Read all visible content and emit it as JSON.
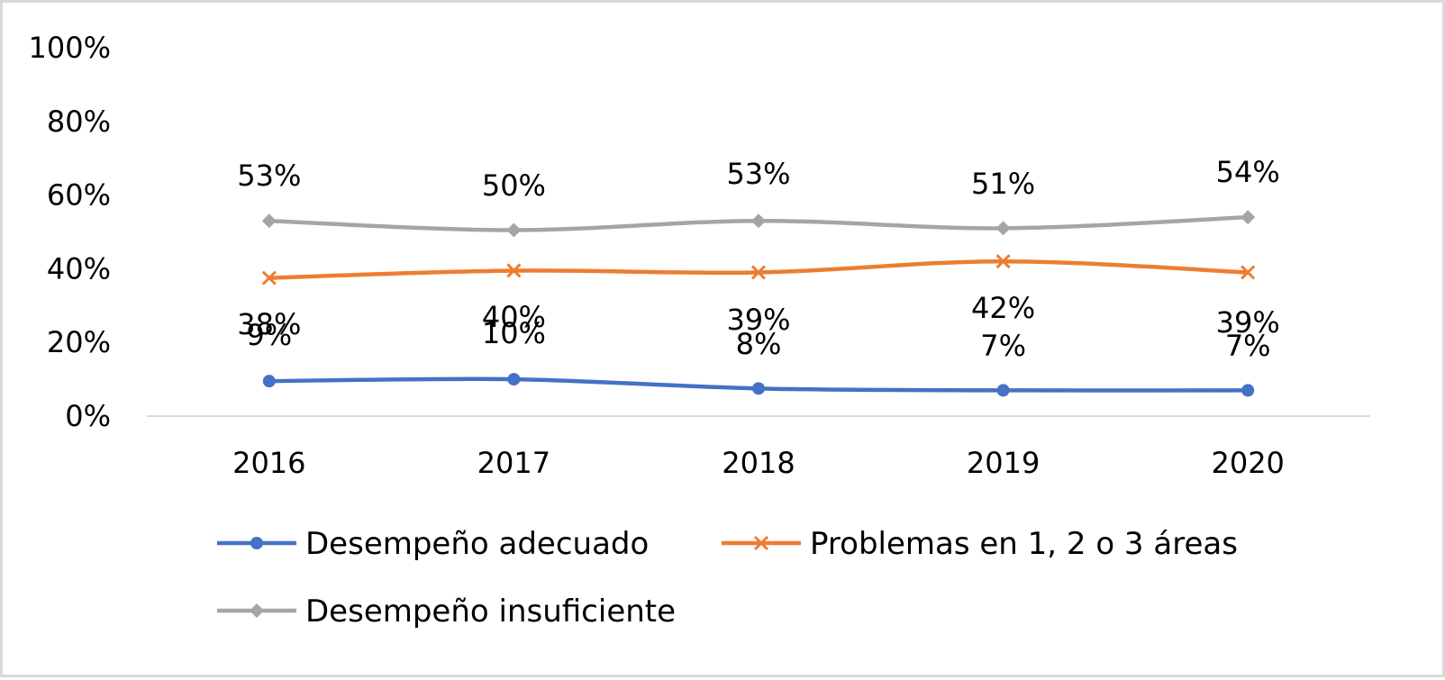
{
  "chart_data": {
    "type": "line",
    "categories": [
      "2016",
      "2017",
      "2018",
      "2019",
      "2020"
    ],
    "ylim": [
      0,
      100
    ],
    "y_ticks": [
      "0%",
      "20%",
      "40%",
      "60%",
      "80%",
      "100%"
    ],
    "y_tick_values": [
      0,
      20,
      40,
      60,
      80,
      100
    ],
    "grid": false,
    "legend_position": "bottom",
    "smooth": true,
    "series": [
      {
        "name": "Desempeño adecuado",
        "values": [
          9.5,
          10,
          7.5,
          7,
          7
        ],
        "labels": [
          "9%",
          "10%",
          "8%",
          "7%",
          "7%"
        ],
        "color": "#4472c4",
        "marker": "circle"
      },
      {
        "name": "Problemas en 1, 2 o 3 áreas",
        "values": [
          37.5,
          39.5,
          39,
          42,
          39
        ],
        "labels": [
          "38%",
          "40%",
          "39%",
          "42%",
          "39%"
        ],
        "color": "#ed7d31",
        "marker": "x"
      },
      {
        "name": "Desempeño insuficiente",
        "values": [
          53,
          50.5,
          53,
          51,
          54
        ],
        "labels": [
          "53%",
          "50%",
          "53%",
          "51%",
          "54%"
        ],
        "color": "#a5a5a5",
        "marker": "diamond"
      }
    ]
  }
}
